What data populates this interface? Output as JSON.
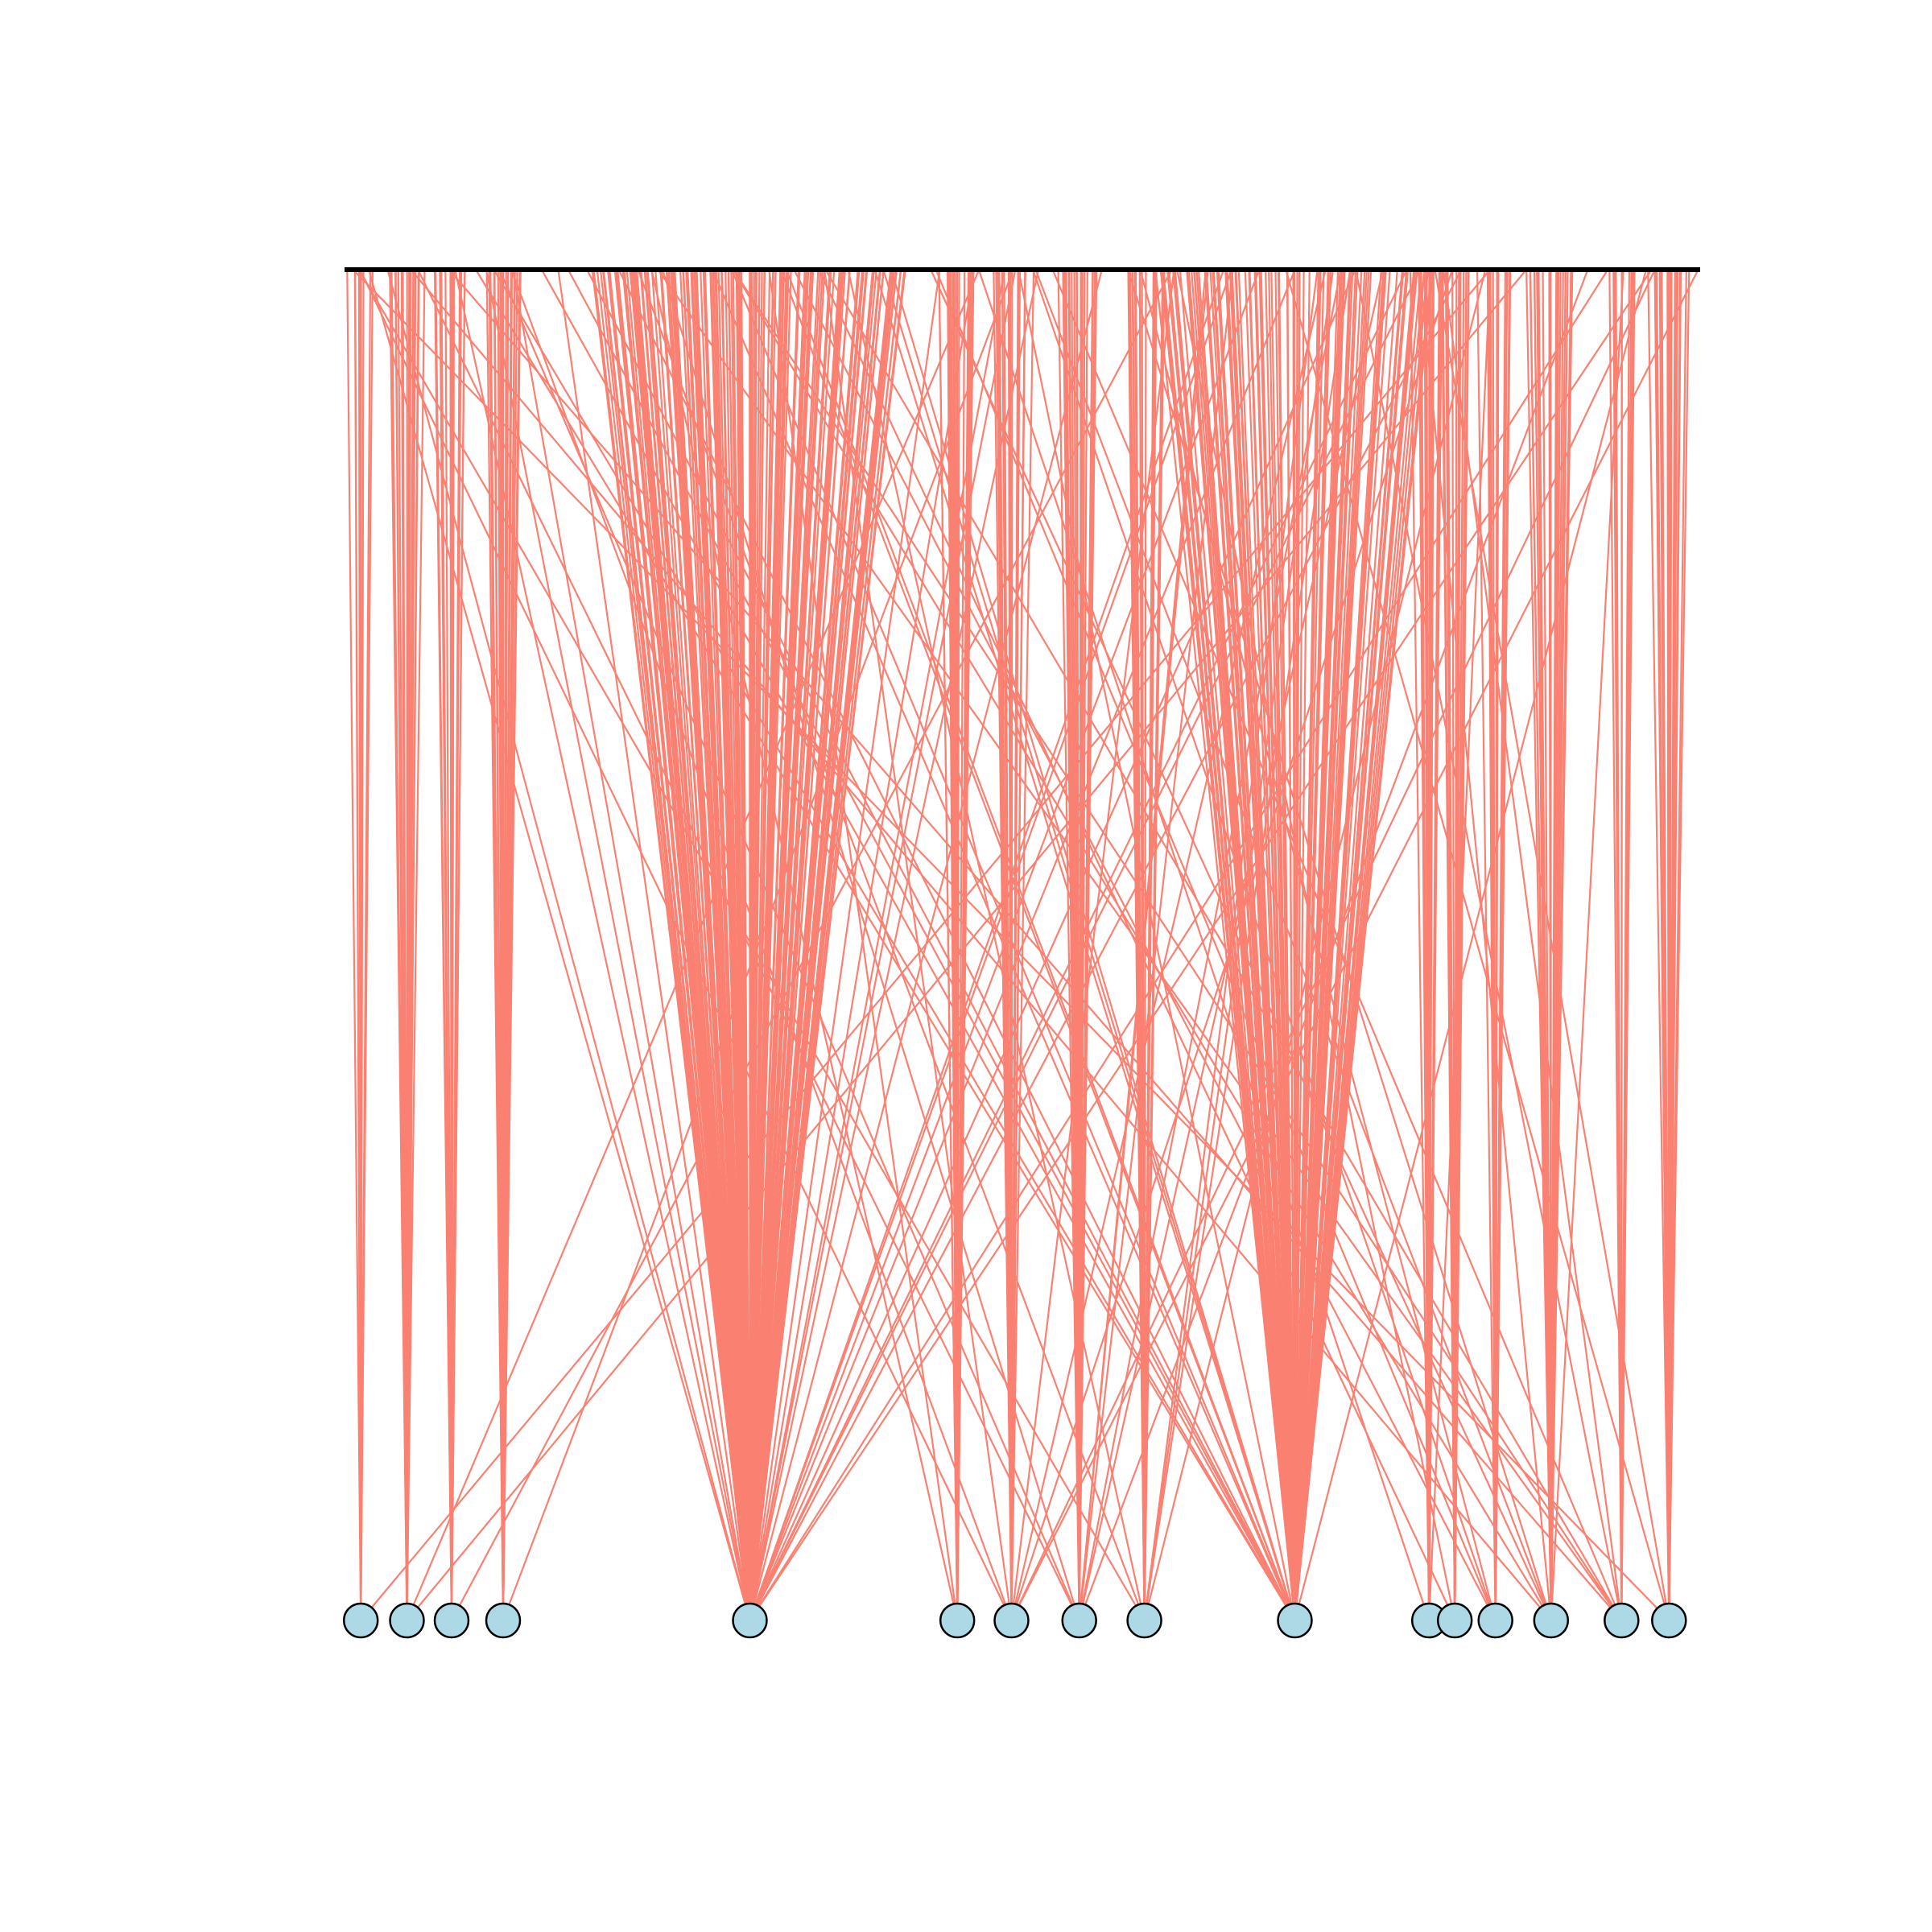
{
  "diagram": {
    "type": "bipartite-network",
    "top_bar": {
      "color": "#000000"
    },
    "edge_color": "#fa8072",
    "node_fill": "#add8e6",
    "node_stroke": "#000000",
    "top_anchor_count": 600,
    "bottom_nodes": [
      {
        "id": "n1",
        "position": 0.012,
        "weight": 10
      },
      {
        "id": "n2",
        "position": 0.046,
        "weight": 18
      },
      {
        "id": "n3",
        "position": 0.079,
        "weight": 14
      },
      {
        "id": "n4",
        "position": 0.117,
        "weight": 22
      },
      {
        "id": "n5",
        "position": 0.299,
        "weight": 170
      },
      {
        "id": "n6",
        "position": 0.452,
        "weight": 20
      },
      {
        "id": "n7",
        "position": 0.492,
        "weight": 26
      },
      {
        "id": "n8",
        "position": 0.542,
        "weight": 28
      },
      {
        "id": "n9",
        "position": 0.59,
        "weight": 24
      },
      {
        "id": "n10",
        "position": 0.701,
        "weight": 110
      },
      {
        "id": "n11",
        "position": 0.8,
        "weight": 16
      },
      {
        "id": "n12",
        "position": 0.819,
        "weight": 16
      },
      {
        "id": "n13",
        "position": 0.849,
        "weight": 18
      },
      {
        "id": "n14",
        "position": 0.89,
        "weight": 30
      },
      {
        "id": "n15",
        "position": 0.942,
        "weight": 16
      },
      {
        "id": "n16",
        "position": 0.977,
        "weight": 22
      }
    ]
  }
}
